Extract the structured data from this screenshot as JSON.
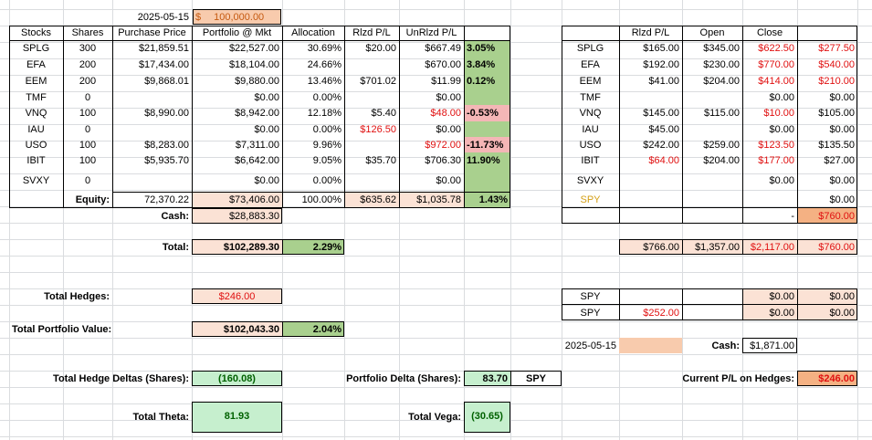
{
  "header": {
    "date": "2025-05-15",
    "capital_symbol": "$",
    "capital_value": "100,000.00"
  },
  "main_table": {
    "columns": [
      "Stocks",
      "Shares",
      "Purchase Price",
      "Portfolio @ Mkt",
      "Allocation",
      "Rlzd P/L",
      "UnRlzd P/L"
    ],
    "rows": [
      {
        "stock": "SPLG",
        "shares": "300",
        "purchase": "$21,859.51",
        "mkt": "$22,527.00",
        "alloc": "30.69%",
        "rlzd": "$20.00",
        "unrlzd": "$667.49",
        "pct": "3.05%"
      },
      {
        "stock": "EFA",
        "shares": "200",
        "purchase": "$17,434.00",
        "mkt": "$18,104.00",
        "alloc": "24.66%",
        "rlzd": "",
        "unrlzd": "$670.00",
        "pct": "3.84%"
      },
      {
        "stock": "EEM",
        "shares": "200",
        "purchase": "$9,868.01",
        "mkt": "$9,880.00",
        "alloc": "13.46%",
        "rlzd": "$701.02",
        "unrlzd": "$11.99",
        "pct": "0.12%"
      },
      {
        "stock": "TMF",
        "shares": "0",
        "purchase": "",
        "mkt": "$0.00",
        "alloc": "0.00%",
        "rlzd": "",
        "unrlzd": "$0.00",
        "pct": ""
      },
      {
        "stock": "VNQ",
        "shares": "100",
        "purchase": "$8,990.00",
        "mkt": "$8,942.00",
        "alloc": "12.18%",
        "rlzd": "$5.40",
        "unrlzd": "$48.00",
        "pct": "-0.53%"
      },
      {
        "stock": "IAU",
        "shares": "0",
        "purchase": "",
        "mkt": "$0.00",
        "alloc": "0.00%",
        "rlzd": "$126.50",
        "unrlzd": "$0.00",
        "pct": ""
      },
      {
        "stock": "USO",
        "shares": "100",
        "purchase": "$8,283.00",
        "mkt": "$7,311.00",
        "alloc": "9.96%",
        "rlzd": "",
        "unrlzd": "$972.00",
        "pct": "-11.73%"
      },
      {
        "stock": "IBIT",
        "shares": "100",
        "purchase": "$5,935.70",
        "mkt": "$6,642.00",
        "alloc": "9.05%",
        "rlzd": "$35.70",
        "unrlzd": "$706.30",
        "pct": "11.90%"
      },
      {
        "stock": "SVXY",
        "shares": "0",
        "purchase": "",
        "mkt": "$0.00",
        "alloc": "0.00%",
        "rlzd": "",
        "unrlzd": "$0.00",
        "pct": ""
      }
    ],
    "equity": {
      "label": "Equity:",
      "purchase": "72,370.22",
      "mkt": "$73,406.00",
      "alloc": "100.00%",
      "rlzd": "$635.62",
      "unrlzd": "$1,035.78",
      "pct": "1.43%"
    },
    "cash": {
      "label": "Cash:",
      "value": "$28,883.30"
    },
    "total": {
      "label": "Total:",
      "value": "$102,289.30",
      "pct": "2.29%"
    }
  },
  "hedges": {
    "total_hedges_label": "Total Hedges:",
    "total_hedges_value": "$246.00",
    "portfolio_value_label": "Total Portfolio Value:",
    "portfolio_value": "$102,043.30",
    "portfolio_pct": "2.04%",
    "hedge_deltas_label": "Total Hedge Deltas (Shares):",
    "hedge_deltas_value": "(160.08)",
    "portfolio_delta_label": "Portfolio Delta (Shares):",
    "portfolio_delta_value": "83.70",
    "portfolio_delta_ticker": "SPY",
    "current_pl_label": "Current P/L on Hedges:",
    "current_pl_value": "$246.00",
    "theta_label": "Total Theta:",
    "theta_value": "81.93",
    "vega_label": "Total Vega:",
    "vega_value": "(30.65)"
  },
  "right_table": {
    "columns": [
      "Rlzd P/L",
      "Open",
      "Close"
    ],
    "rows": [
      {
        "stock": "SPLG",
        "rlzd": "$165.00",
        "open": "$345.00",
        "close": "$622.50",
        "net": "$277.50"
      },
      {
        "stock": "EFA",
        "rlzd": "$192.00",
        "open": "$230.00",
        "close": "$770.00",
        "net": "$540.00"
      },
      {
        "stock": "EEM",
        "rlzd": "$41.00",
        "open": "$204.00",
        "close": "$414.00",
        "net": "$210.00"
      },
      {
        "stock": "TMF",
        "rlzd": "",
        "open": "",
        "close": "$0.00",
        "net": "$0.00"
      },
      {
        "stock": "VNQ",
        "rlzd": "$145.00",
        "open": "$115.00",
        "close": "$10.00",
        "net": "$105.00"
      },
      {
        "stock": "IAU",
        "rlzd": "$45.00",
        "open": "",
        "close": "$0.00",
        "net": "$0.00"
      },
      {
        "stock": "USO",
        "rlzd": "$242.00",
        "open": "$259.00",
        "close": "$123.50",
        "net": "$135.50"
      },
      {
        "stock": "IBIT",
        "rlzd": "$64.00",
        "open": "$204.00",
        "close": "$177.00",
        "net": "$27.00"
      },
      {
        "stock": "SVXY",
        "rlzd": "",
        "open": "",
        "close": "$0.00",
        "net": "$0.00"
      }
    ],
    "spy_label": "SPY",
    "spy_net": "$0.00",
    "dash": "-",
    "dash_net": "$760.00",
    "totals": {
      "rlzd": "$766.00",
      "open": "$1,357.00",
      "close": "$2,117.00",
      "net": "$760.00"
    },
    "hedge_rows": [
      {
        "stock": "SPY",
        "rlzd": "",
        "close": "$0.00",
        "net": "$0.00"
      },
      {
        "stock": "SPY",
        "rlzd": "$252.00",
        "close": "$0.00",
        "net": "$0.00"
      }
    ],
    "date": "2025-05-15",
    "cash_label": "Cash:",
    "cash_value": "$1,871.00"
  }
}
